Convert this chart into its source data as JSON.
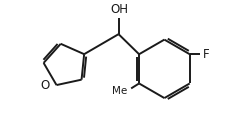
{
  "background_color": "#ffffff",
  "line_color": "#1a1a1a",
  "line_width": 1.4,
  "font_size": 8.5,
  "label_OH": "OH",
  "label_O": "O",
  "label_F": "F",
  "label_Me": "Me",
  "figsize": [
    2.52,
    1.32
  ],
  "dpi": 100,
  "xlim": [
    0,
    10
  ],
  "ylim": [
    0,
    5.2
  ],
  "mc_x": 4.7,
  "mc_y": 3.95,
  "bx": 6.55,
  "by": 2.55,
  "br": 1.18
}
